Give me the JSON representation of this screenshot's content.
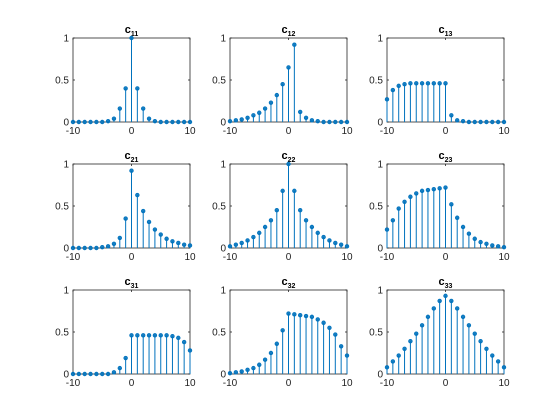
{
  "figure": {
    "background": "#ffffff",
    "stem_color": "#0072bd"
  },
  "chart_data": [
    {
      "type": "stem",
      "title_main": "c",
      "title_sub": "11",
      "x": [
        -10,
        -9,
        -8,
        -7,
        -6,
        -5,
        -4,
        -3,
        -2,
        -1,
        0,
        1,
        2,
        3,
        4,
        5,
        6,
        7,
        8,
        9,
        10
      ],
      "y": [
        0.0,
        0.0,
        0.0,
        0.0,
        0.0,
        0.0,
        0.01,
        0.04,
        0.16,
        0.4,
        1.0,
        0.4,
        0.16,
        0.04,
        0.01,
        0.0,
        0.0,
        0.0,
        0.0,
        0.0,
        0.0
      ],
      "xlim": [
        -10,
        10
      ],
      "ylim": [
        0,
        1
      ],
      "xticks": [
        -10,
        0,
        10
      ],
      "xtick_labels": [
        "-10",
        "0",
        "10"
      ],
      "yticks": [
        0,
        0.5,
        1
      ],
      "ytick_labels": [
        "0",
        "0.5",
        "1"
      ]
    },
    {
      "type": "stem",
      "title_main": "c",
      "title_sub": "12",
      "x": [
        -10,
        -9,
        -8,
        -7,
        -6,
        -5,
        -4,
        -3,
        -2,
        -1,
        0,
        1,
        2,
        3,
        4,
        5,
        6,
        7,
        8,
        9,
        10
      ],
      "y": [
        0.01,
        0.02,
        0.03,
        0.05,
        0.08,
        0.11,
        0.16,
        0.23,
        0.32,
        0.45,
        0.65,
        0.92,
        0.12,
        0.05,
        0.02,
        0.01,
        0.0,
        0.0,
        0.0,
        0.0,
        0.0
      ],
      "xlim": [
        -10,
        10
      ],
      "ylim": [
        0,
        1
      ],
      "xticks": [
        -10,
        0,
        10
      ],
      "xtick_labels": [
        "-10",
        "0",
        "10"
      ],
      "yticks": [
        0,
        0.5,
        1
      ],
      "ytick_labels": [
        "0",
        "0.5",
        "1"
      ]
    },
    {
      "type": "stem",
      "title_main": "c",
      "title_sub": "13",
      "x": [
        -10,
        -9,
        -8,
        -7,
        -6,
        -5,
        -4,
        -3,
        -2,
        -1,
        0,
        1,
        2,
        3,
        4,
        5,
        6,
        7,
        8,
        9,
        10
      ],
      "y": [
        0.27,
        0.38,
        0.43,
        0.45,
        0.46,
        0.46,
        0.46,
        0.46,
        0.46,
        0.46,
        0.46,
        0.08,
        0.02,
        0.01,
        0.0,
        0.0,
        0.0,
        0.0,
        0.0,
        0.0,
        0.0
      ],
      "xlim": [
        -10,
        10
      ],
      "ylim": [
        0,
        1
      ],
      "xticks": [
        -10,
        0,
        10
      ],
      "xtick_labels": [
        "-10",
        "0",
        "10"
      ],
      "yticks": [
        0,
        0.5,
        1
      ],
      "ytick_labels": [
        "0",
        "0.5",
        "1"
      ]
    },
    {
      "type": "stem",
      "title_main": "c",
      "title_sub": "21",
      "x": [
        -10,
        -9,
        -8,
        -7,
        -6,
        -5,
        -4,
        -3,
        -2,
        -1,
        0,
        1,
        2,
        3,
        4,
        5,
        6,
        7,
        8,
        9,
        10
      ],
      "y": [
        0.0,
        0.0,
        0.0,
        0.0,
        0.0,
        0.01,
        0.02,
        0.05,
        0.12,
        0.35,
        0.92,
        0.63,
        0.44,
        0.31,
        0.22,
        0.16,
        0.11,
        0.08,
        0.06,
        0.04,
        0.03
      ],
      "xlim": [
        -10,
        10
      ],
      "ylim": [
        0,
        1
      ],
      "xticks": [
        -10,
        0,
        10
      ],
      "xtick_labels": [
        "-10",
        "0",
        "10"
      ],
      "yticks": [
        0,
        0.5,
        1
      ],
      "ytick_labels": [
        "0",
        "0.5",
        "1"
      ]
    },
    {
      "type": "stem",
      "title_main": "c",
      "title_sub": "22",
      "x": [
        -10,
        -9,
        -8,
        -7,
        -6,
        -5,
        -4,
        -3,
        -2,
        -1,
        0,
        1,
        2,
        3,
        4,
        5,
        6,
        7,
        8,
        9,
        10
      ],
      "y": [
        0.02,
        0.04,
        0.06,
        0.09,
        0.13,
        0.18,
        0.25,
        0.33,
        0.45,
        0.68,
        1.0,
        0.68,
        0.45,
        0.33,
        0.25,
        0.18,
        0.13,
        0.09,
        0.06,
        0.04,
        0.02
      ],
      "xlim": [
        -10,
        10
      ],
      "ylim": [
        0,
        1
      ],
      "xticks": [
        -10,
        0,
        10
      ],
      "xtick_labels": [
        "-10",
        "0",
        "10"
      ],
      "yticks": [
        0,
        0.5,
        1
      ],
      "ytick_labels": [
        "0",
        "0.5",
        "1"
      ]
    },
    {
      "type": "stem",
      "title_main": "c",
      "title_sub": "23",
      "x": [
        -10,
        -9,
        -8,
        -7,
        -6,
        -5,
        -4,
        -3,
        -2,
        -1,
        0,
        1,
        2,
        3,
        4,
        5,
        6,
        7,
        8,
        9,
        10
      ],
      "y": [
        0.22,
        0.33,
        0.47,
        0.55,
        0.61,
        0.65,
        0.68,
        0.69,
        0.7,
        0.71,
        0.72,
        0.52,
        0.36,
        0.25,
        0.17,
        0.11,
        0.07,
        0.05,
        0.03,
        0.02,
        0.01
      ],
      "xlim": [
        -10,
        10
      ],
      "ylim": [
        0,
        1
      ],
      "xticks": [
        -10,
        0,
        10
      ],
      "xtick_labels": [
        "-10",
        "0",
        "10"
      ],
      "yticks": [
        0,
        0.5,
        1
      ],
      "ytick_labels": [
        "0",
        "0.5",
        "1"
      ]
    },
    {
      "type": "stem",
      "title_main": "c",
      "title_sub": "31",
      "x": [
        -10,
        -9,
        -8,
        -7,
        -6,
        -5,
        -4,
        -3,
        -2,
        -1,
        0,
        1,
        2,
        3,
        4,
        5,
        6,
        7,
        8,
        9,
        10
      ],
      "y": [
        0.0,
        0.0,
        0.0,
        0.0,
        0.0,
        0.0,
        0.0,
        0.02,
        0.07,
        0.19,
        0.46,
        0.46,
        0.46,
        0.46,
        0.46,
        0.46,
        0.46,
        0.45,
        0.43,
        0.38,
        0.28
      ],
      "xlim": [
        -10,
        10
      ],
      "ylim": [
        0,
        1
      ],
      "xticks": [
        -10,
        0,
        10
      ],
      "xtick_labels": [
        "-10",
        "0",
        "10"
      ],
      "yticks": [
        0,
        0.5,
        1
      ],
      "ytick_labels": [
        "0",
        "0.5",
        "1"
      ]
    },
    {
      "type": "stem",
      "title_main": "c",
      "title_sub": "32",
      "x": [
        -10,
        -9,
        -8,
        -7,
        -6,
        -5,
        -4,
        -3,
        -2,
        -1,
        0,
        1,
        2,
        3,
        4,
        5,
        6,
        7,
        8,
        9,
        10
      ],
      "y": [
        0.01,
        0.02,
        0.03,
        0.05,
        0.07,
        0.11,
        0.17,
        0.25,
        0.36,
        0.52,
        0.72,
        0.71,
        0.7,
        0.69,
        0.68,
        0.65,
        0.61,
        0.55,
        0.47,
        0.33,
        0.22
      ],
      "xlim": [
        -10,
        10
      ],
      "ylim": [
        0,
        1
      ],
      "xticks": [
        -10,
        0,
        10
      ],
      "xtick_labels": [
        "-10",
        "0",
        "10"
      ],
      "yticks": [
        0,
        0.5,
        1
      ],
      "ytick_labels": [
        "0",
        "0.5",
        "1"
      ]
    },
    {
      "type": "stem",
      "title_main": "c",
      "title_sub": "33",
      "x": [
        -10,
        -9,
        -8,
        -7,
        -6,
        -5,
        -4,
        -3,
        -2,
        -1,
        0,
        1,
        2,
        3,
        4,
        5,
        6,
        7,
        8,
        9,
        10
      ],
      "y": [
        0.08,
        0.15,
        0.22,
        0.3,
        0.39,
        0.48,
        0.58,
        0.68,
        0.78,
        0.87,
        0.93,
        0.87,
        0.78,
        0.68,
        0.58,
        0.48,
        0.39,
        0.3,
        0.22,
        0.15,
        0.08
      ],
      "xlim": [
        -10,
        10
      ],
      "ylim": [
        0,
        1
      ],
      "xticks": [
        -10,
        0,
        10
      ],
      "xtick_labels": [
        "-10",
        "0",
        "10"
      ],
      "yticks": [
        0,
        0.5,
        1
      ],
      "ytick_labels": [
        "0",
        "0.5",
        "1"
      ]
    }
  ]
}
